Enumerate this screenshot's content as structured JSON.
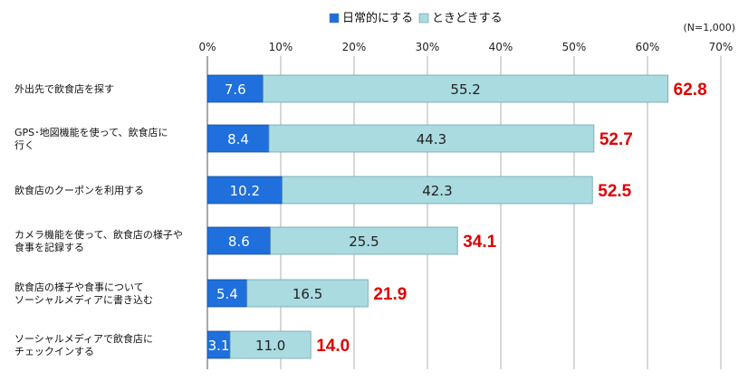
{
  "chart_data": {
    "type": "bar",
    "orientation": "horizontal",
    "stacked": true,
    "note": "(N=1,000)",
    "xlim": [
      0,
      70
    ],
    "x_ticks": [
      "0%",
      "10%",
      "20%",
      "30%",
      "40%",
      "50%",
      "60%",
      "70%"
    ],
    "categories": [
      [
        "外出先で飲食店を探す"
      ],
      [
        "GPS･地図機能を使って、飲食店に",
        "行く"
      ],
      [
        "飲食店のクーポンを利用する"
      ],
      [
        "カメラ機能を使って、飲食店の様子や",
        "食事を記録する"
      ],
      [
        "飲食店の様子や食事について",
        "ソーシャルメディアに書き込む"
      ],
      [
        "ソーシャルメディアで飲食店に",
        "チェックインする"
      ]
    ],
    "series": [
      {
        "name": "日常的にする",
        "color": "#1f6fdc",
        "values": [
          "7.6",
          "8.4",
          "10.2",
          "8.6",
          "5.4",
          "3.1"
        ]
      },
      {
        "name": "ときどきする",
        "color": "#a9dbe0",
        "values": [
          "55.2",
          "44.3",
          "42.3",
          "25.5",
          "16.5",
          "11.0"
        ]
      }
    ],
    "totals": [
      "62.8",
      "52.7",
      "52.5",
      "34.1",
      "21.9",
      "14.0"
    ],
    "total_color": "#e00000",
    "gridlines": true,
    "legend_position": "top"
  }
}
